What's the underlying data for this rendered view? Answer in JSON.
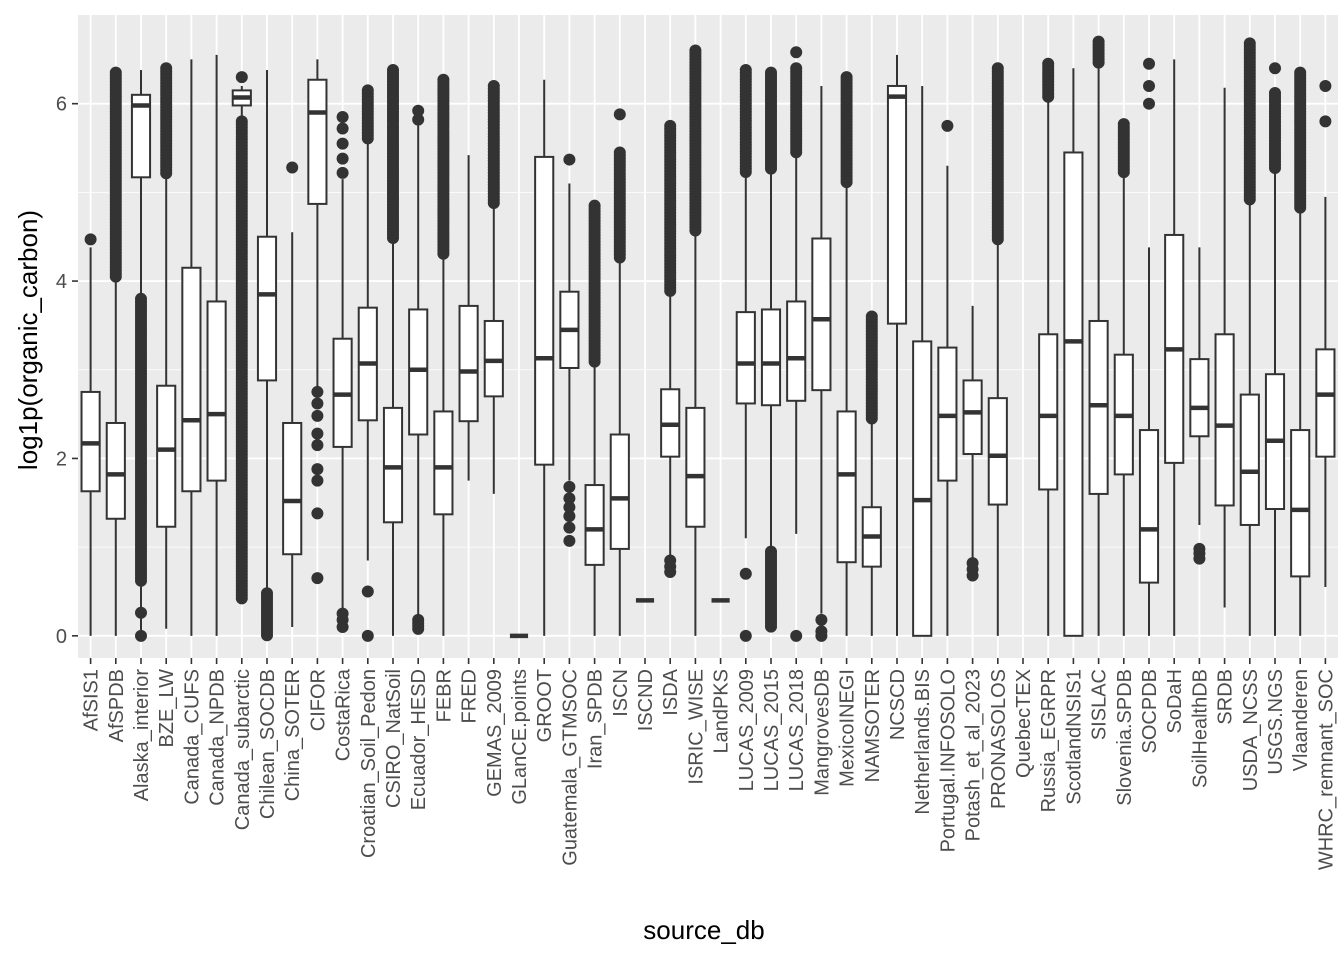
{
  "chart_data": {
    "type": "boxplot",
    "xlabel": "source_db",
    "ylabel": "log1p(organic_carbon)",
    "ylim": [
      -0.25,
      7.0
    ],
    "yticks": [
      0,
      2,
      4,
      6
    ],
    "grid": true,
    "legend": "none",
    "colors": {
      "panel": "#EBEBEB",
      "grid_major": "#FFFFFF",
      "box_fill": "#FFFFFF",
      "stroke": "#333333",
      "axis_text": "#4D4D4D",
      "title": "#000000"
    },
    "categories": [
      "AfSIS1",
      "AfSPDB",
      "Alaska_interior",
      "BZE_LW",
      "Canada_CUFS",
      "Canada_NPDB",
      "Canada_subarctic",
      "Chilean_SOCDB",
      "China_SOTER",
      "CIFOR",
      "CostaRica",
      "Croatian_Soil_Pedon",
      "CSIRO_NatSoil",
      "Ecuador_HESD",
      "FEBR",
      "FRED",
      "GEMAS_2009",
      "GLanCE.points",
      "GROOT",
      "Guatemala_GTMSOC",
      "Iran_SPDB",
      "ISCN",
      "ISCND",
      "ISDA",
      "ISRIC_WISE",
      "LandPKS",
      "LUCAS_2009",
      "LUCAS_2015",
      "LUCAS_2018",
      "MangrovesDB",
      "MexicoINEGI",
      "NAMSOTER",
      "NCSCD",
      "Netherlands.BIS",
      "Portugal.INFOSOLO",
      "Potash_et_al_2023",
      "PRONASOLOS",
      "QuebecTEX",
      "Russia_EGRPR",
      "ScotlandNSIS1",
      "SISLAC",
      "Slovenia.SPDB",
      "SOCPDB",
      "SoDaH",
      "SoilHealthDB",
      "SRDB",
      "USDA_NCSS",
      "USGS.NGS",
      "Vlaanderen",
      "WHRC_remnant_SOC"
    ],
    "boxes": [
      {
        "min": 0.0,
        "q1": 1.63,
        "median": 2.17,
        "q3": 2.75,
        "max": 4.38,
        "outliers": [
          4.47
        ]
      },
      {
        "min": 0.0,
        "q1": 1.32,
        "median": 1.82,
        "q3": 2.4,
        "max": 4.05,
        "outliers_band": [
          4.05,
          6.35
        ]
      },
      {
        "min": 0.0,
        "q1": 5.17,
        "median": 5.98,
        "q3": 6.1,
        "max": 6.38,
        "outliers_band": [
          0.62,
          3.8
        ],
        "outliers": [
          0.0,
          0.26
        ]
      },
      {
        "min": 0.08,
        "q1": 1.23,
        "median": 2.1,
        "q3": 2.82,
        "max": 5.2,
        "outliers_band": [
          5.2,
          6.4
        ]
      },
      {
        "min": 0.0,
        "q1": 1.63,
        "median": 2.43,
        "q3": 4.15,
        "max": 6.5,
        "outliers": []
      },
      {
        "min": 0.0,
        "q1": 1.75,
        "median": 2.5,
        "q3": 3.77,
        "max": 6.55,
        "outliers": []
      },
      {
        "min": 5.85,
        "q1": 5.98,
        "median": 6.07,
        "q3": 6.15,
        "max": 6.2,
        "outliers_band": [
          0.4,
          5.8
        ],
        "outliers": [
          6.3
        ]
      },
      {
        "min": 0.5,
        "q1": 2.88,
        "median": 3.85,
        "q3": 4.5,
        "max": 6.38,
        "outliers_band": [
          0.0,
          0.48
        ]
      },
      {
        "min": 0.1,
        "q1": 0.92,
        "median": 1.52,
        "q3": 2.4,
        "max": 4.55,
        "outliers": [
          5.28
        ]
      },
      {
        "min": 2.78,
        "q1": 4.87,
        "median": 5.9,
        "q3": 6.27,
        "max": 6.5,
        "outliers": [
          2.75,
          2.62,
          2.48,
          2.28,
          2.15,
          1.88,
          1.75,
          1.38,
          0.65
        ]
      },
      {
        "min": 0.28,
        "q1": 2.13,
        "median": 2.72,
        "q3": 3.35,
        "max": 5.15,
        "outliers": [
          5.22,
          5.38,
          5.55,
          5.72,
          5.85,
          0.25,
          0.18,
          0.1
        ]
      },
      {
        "min": 0.85,
        "q1": 2.43,
        "median": 3.07,
        "q3": 3.7,
        "max": 5.6,
        "outliers_band": [
          5.6,
          6.15
        ],
        "outliers": [
          0.5,
          0.0
        ]
      },
      {
        "min": 0.0,
        "q1": 1.28,
        "median": 1.9,
        "q3": 2.57,
        "max": 4.48,
        "outliers_band": [
          4.48,
          6.38
        ]
      },
      {
        "min": 0.18,
        "q1": 2.27,
        "median": 3.0,
        "q3": 3.68,
        "max": 5.78,
        "outliers": [
          5.82,
          5.92
        ],
        "outliers_band": [
          0.05,
          0.18
        ]
      },
      {
        "min": 0.0,
        "q1": 1.37,
        "median": 1.9,
        "q3": 2.53,
        "max": 4.28,
        "outliers_band": [
          4.28,
          6.27
        ]
      },
      {
        "min": 1.75,
        "q1": 2.42,
        "median": 2.98,
        "q3": 3.72,
        "max": 5.42,
        "outliers": []
      },
      {
        "min": 1.6,
        "q1": 2.7,
        "median": 3.1,
        "q3": 3.55,
        "max": 4.85,
        "outliers_band": [
          4.85,
          6.2
        ]
      },
      {
        "min": 0.0,
        "q1": 0.0,
        "median": 0.0,
        "q3": 0.0,
        "max": 0.0,
        "outliers": []
      },
      {
        "min": 0.0,
        "q1": 1.93,
        "median": 3.13,
        "q3": 5.4,
        "max": 6.27,
        "outliers": []
      },
      {
        "min": 1.75,
        "q1": 3.02,
        "median": 3.45,
        "q3": 3.88,
        "max": 5.1,
        "outliers": [
          5.37,
          1.68,
          1.55,
          1.45,
          1.35,
          1.22,
          1.07
        ]
      },
      {
        "min": 0.0,
        "q1": 0.8,
        "median": 1.2,
        "q3": 1.7,
        "max": 3.07,
        "outliers_band": [
          3.07,
          4.85
        ]
      },
      {
        "min": 0.0,
        "q1": 0.98,
        "median": 1.55,
        "q3": 2.27,
        "max": 4.25,
        "outliers_band": [
          4.25,
          5.45
        ],
        "outliers": [
          5.88
        ]
      },
      {
        "min": 0.4,
        "q1": 0.4,
        "median": 0.4,
        "q3": 0.4,
        "max": 0.4,
        "outliers": []
      },
      {
        "min": 0.9,
        "q1": 2.02,
        "median": 2.38,
        "q3": 2.78,
        "max": 3.88,
        "outliers_band": [
          3.88,
          5.75
        ],
        "outliers": [
          0.85,
          0.78,
          0.72
        ]
      },
      {
        "min": 0.0,
        "q1": 1.23,
        "median": 1.8,
        "q3": 2.57,
        "max": 4.55,
        "outliers_band": [
          4.55,
          6.6
        ]
      },
      {
        "min": 0.4,
        "q1": 0.4,
        "median": 0.4,
        "q3": 0.4,
        "max": 0.4,
        "outliers": []
      },
      {
        "min": 1.1,
        "q1": 2.62,
        "median": 3.07,
        "q3": 3.65,
        "max": 5.2,
        "outliers_band": [
          5.2,
          6.38
        ],
        "outliers": [
          0.7,
          0.0
        ]
      },
      {
        "min": 1.0,
        "q1": 2.6,
        "median": 3.07,
        "q3": 3.68,
        "max": 5.25,
        "outliers_band": [
          5.25,
          6.35
        ],
        "outliers_band_low": [
          0.1,
          0.95
        ]
      },
      {
        "min": 1.15,
        "q1": 2.65,
        "median": 3.13,
        "q3": 3.77,
        "max": 5.45,
        "outliers_band": [
          5.45,
          6.4
        ],
        "outliers": [
          6.58,
          0.0
        ]
      },
      {
        "min": 0.25,
        "q1": 2.77,
        "median": 3.57,
        "q3": 4.48,
        "max": 6.2,
        "outliers": [
          0.18,
          0.05,
          0.0
        ]
      },
      {
        "min": 0.0,
        "q1": 0.83,
        "median": 1.82,
        "q3": 2.53,
        "max": 5.1,
        "outliers_band": [
          5.1,
          6.3
        ]
      },
      {
        "min": 0.0,
        "q1": 0.78,
        "median": 1.12,
        "q3": 1.45,
        "max": 2.45,
        "outliers_band": [
          2.45,
          3.6
        ]
      },
      {
        "min": 0.0,
        "q1": 3.52,
        "median": 6.08,
        "q3": 6.2,
        "max": 6.55,
        "outliers": []
      },
      {
        "min": 0.0,
        "q1": 0.0,
        "median": 1.53,
        "q3": 3.32,
        "max": 6.2,
        "outliers": []
      },
      {
        "min": 0.0,
        "q1": 1.75,
        "median": 2.48,
        "q3": 3.25,
        "max": 5.3,
        "outliers": [
          5.75
        ]
      },
      {
        "min": 0.82,
        "q1": 2.05,
        "median": 2.52,
        "q3": 2.88,
        "max": 3.72,
        "outliers": [
          0.82,
          0.75,
          0.68
        ]
      },
      {
        "min": 0.0,
        "q1": 1.48,
        "median": 2.03,
        "q3": 2.68,
        "max": 4.45,
        "outliers_band": [
          4.45,
          6.4
        ]
      },
      {
        "min": 0,
        "q1": 0,
        "median": 0,
        "q3": 0,
        "max": 0,
        "outliers": [],
        "empty": true
      },
      {
        "min": 0.0,
        "q1": 1.65,
        "median": 2.48,
        "q3": 3.4,
        "max": 6.05,
        "outliers_band": [
          6.05,
          6.45
        ]
      },
      {
        "min": 0.0,
        "q1": 0.0,
        "median": 3.32,
        "q3": 5.45,
        "max": 6.4,
        "outliers": []
      },
      {
        "min": 0.0,
        "q1": 1.6,
        "median": 2.6,
        "q3": 3.55,
        "max": 6.45,
        "outliers_band": [
          6.45,
          6.7
        ]
      },
      {
        "min": 0.0,
        "q1": 1.82,
        "median": 2.48,
        "q3": 3.17,
        "max": 5.2,
        "outliers_band": [
          5.2,
          5.77
        ]
      },
      {
        "min": 0.0,
        "q1": 0.6,
        "median": 1.2,
        "q3": 2.32,
        "max": 4.38,
        "outliers": [
          6.45,
          6.2,
          6.0
        ]
      },
      {
        "min": 0.0,
        "q1": 1.95,
        "median": 3.23,
        "q3": 4.52,
        "max": 6.5,
        "outliers": []
      },
      {
        "min": 1.25,
        "q1": 2.25,
        "median": 2.57,
        "q3": 3.12,
        "max": 4.38,
        "outliers": [
          0.98,
          0.93,
          0.87
        ]
      },
      {
        "min": 0.32,
        "q1": 1.47,
        "median": 2.37,
        "q3": 3.4,
        "max": 6.18,
        "outliers": []
      },
      {
        "min": 0.0,
        "q1": 1.25,
        "median": 1.85,
        "q3": 2.72,
        "max": 4.9,
        "outliers_band": [
          4.9,
          6.68
        ]
      },
      {
        "min": 0.0,
        "q1": 1.43,
        "median": 2.2,
        "q3": 2.95,
        "max": 5.27,
        "outliers_band": [
          5.27,
          6.12
        ],
        "outliers": [
          6.4
        ]
      },
      {
        "min": 0.0,
        "q1": 0.67,
        "median": 1.42,
        "q3": 2.32,
        "max": 4.8,
        "outliers_band": [
          4.8,
          6.35
        ]
      },
      {
        "min": 0.55,
        "q1": 2.02,
        "median": 2.72,
        "q3": 3.23,
        "max": 4.95,
        "outliers": [
          5.8,
          6.2
        ]
      }
    ]
  }
}
